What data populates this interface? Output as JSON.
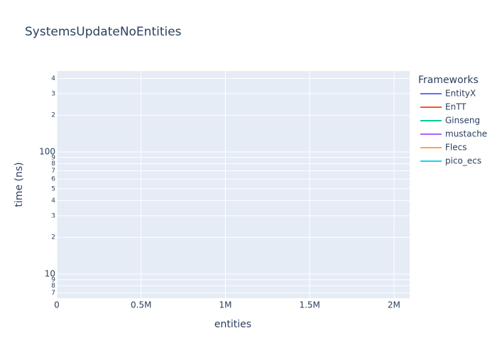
{
  "chart_data": {
    "type": "line",
    "title": "SystemsUpdateNoEntities",
    "x_label": "entities",
    "y_label": "time (ns)",
    "legend_title": "Frameworks",
    "x": [],
    "series": [
      {
        "name": "EntityX",
        "color": "#636efa",
        "values": []
      },
      {
        "name": "EnTT",
        "color": "#ef553b",
        "values": []
      },
      {
        "name": "Ginseng",
        "color": "#00cc96",
        "values": []
      },
      {
        "name": "mustache",
        "color": "#ab63fa",
        "values": []
      },
      {
        "name": "Flecs",
        "color": "#ffa15a",
        "values": []
      },
      {
        "name": "pico_ecs",
        "color": "#19d3f3",
        "values": []
      }
    ],
    "xlim": [
      0,
      2093000
    ],
    "xticks": [
      0,
      {
        "value": 500000,
        "label": "0.5M"
      },
      {
        "value": 1000000,
        "label": "1M"
      },
      {
        "value": 1500000,
        "label": "1.5M"
      },
      {
        "value": 2000000,
        "label": "2M"
      }
    ],
    "ylim": [
      6.34,
      460
    ],
    "y_scale": "log",
    "yticks": [
      {
        "value": 7,
        "label": "7"
      },
      {
        "value": 8,
        "label": "8"
      },
      {
        "value": 9,
        "label": "9"
      },
      10,
      {
        "value": 20,
        "label": "2"
      },
      {
        "value": 30,
        "label": "3"
      },
      {
        "value": 40,
        "label": "4"
      },
      {
        "value": 50,
        "label": "5"
      },
      {
        "value": 60,
        "label": "6"
      },
      {
        "value": 70,
        "label": "7"
      },
      {
        "value": 80,
        "label": "8"
      },
      {
        "value": 90,
        "label": "9"
      },
      100,
      {
        "value": 200,
        "label": "2"
      },
      {
        "value": 300,
        "label": "3"
      },
      {
        "value": 400,
        "label": "4"
      }
    ],
    "grid": true,
    "legend_position": "right"
  }
}
